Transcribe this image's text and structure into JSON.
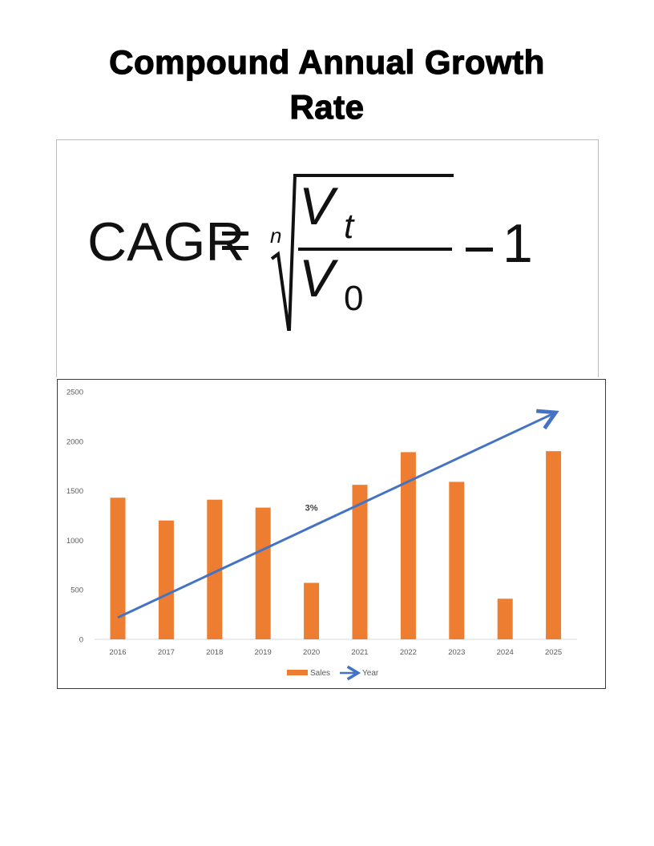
{
  "page": {
    "title_line1": "Compound Annual Growth",
    "title_line2": "Rate"
  },
  "formula": {
    "lhs": "CAGR",
    "equals": "=",
    "root_index": "n",
    "numerator_base": "V",
    "numerator_sub": "t",
    "denominator_base": "V",
    "denominator_sub": "0",
    "minus": "−",
    "one": "1",
    "text": "CAGR = (Vt / V0)^(1/n) − 1"
  },
  "chart_data": {
    "type": "bar",
    "title": "",
    "xlabel": "",
    "ylabel": "",
    "categories": [
      "2016",
      "2017",
      "2018",
      "2019",
      "2020",
      "2021",
      "2022",
      "2023",
      "2024",
      "2025"
    ],
    "series": [
      {
        "name": "Sales",
        "type": "bar",
        "color": "#ED7D31",
        "values": [
          1430,
          1200,
          1410,
          1330,
          570,
          1560,
          1890,
          1590,
          410,
          1900
        ]
      }
    ],
    "overlay": {
      "name": "Year",
      "type": "arrow",
      "color": "#4472C4",
      "from": {
        "x": "2016",
        "y": 220
      },
      "to": {
        "x": "2025",
        "y": 2280
      }
    },
    "annotations": [
      {
        "text": "3%",
        "x": "2020",
        "y": 1300
      }
    ],
    "yticks": [
      0,
      500,
      1000,
      1500,
      2000,
      2500
    ],
    "ylim": [
      0,
      2500
    ],
    "grid": false,
    "legend": {
      "position": "bottom",
      "entries": [
        "Sales",
        "Year"
      ]
    }
  },
  "chart": {
    "yaxis_labels": [
      "0",
      "500",
      "1000",
      "1500",
      "2000",
      "2500"
    ],
    "annotation_label": "3%",
    "legend_sales": "Sales",
    "legend_year": "Year",
    "colors": {
      "bar": "#ED7D31",
      "arrow": "#4472C4",
      "axis_text": "#595959",
      "axis_line": "#D9D9D9"
    }
  }
}
